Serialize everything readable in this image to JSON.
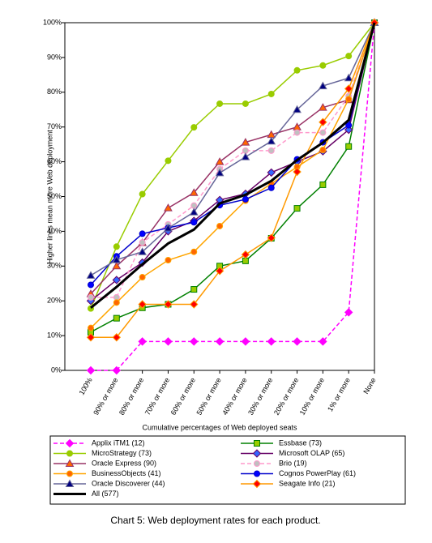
{
  "chart_data": {
    "type": "line",
    "title": "Chart 5:  Web deployment rates for each product.",
    "y_label": "Higher lines mean more Web deployment",
    "x_label": "Cumulative percentages of Web deployed seats",
    "categories": [
      "100%",
      "90% or more",
      "80% or more",
      "70% or more",
      "60% or more",
      "50% or more",
      "40% or more",
      "30% or more",
      "20% or more",
      "10% or more",
      "1% or more",
      "None"
    ],
    "ylim": [
      0,
      100
    ],
    "yticks": [
      {
        "value": 0,
        "label": "0%"
      },
      {
        "value": 10,
        "label": "10%"
      },
      {
        "value": 20,
        "label": "20%"
      },
      {
        "value": 30,
        "label": "30%"
      },
      {
        "value": 40,
        "label": "40%"
      },
      {
        "value": 50,
        "label": "50%"
      },
      {
        "value": 60,
        "label": "60%"
      },
      {
        "value": 70,
        "label": "70%"
      },
      {
        "value": 80,
        "label": "80%"
      },
      {
        "value": 90,
        "label": "90%"
      },
      {
        "value": 100,
        "label": "100%"
      }
    ],
    "grid": false,
    "series": [
      {
        "name": "Applix iTM1 (12)",
        "color": "#ff00ff",
        "marker": "diamond",
        "marker_fill": "#ff00ff",
        "dash": true,
        "values": [
          0,
          0,
          8.3,
          8.3,
          8.3,
          8.3,
          8.3,
          8.3,
          8.3,
          8.3,
          16.7,
          100
        ]
      },
      {
        "name": "Essbase (73)",
        "color": "#008000",
        "marker": "square",
        "marker_fill": "#99cc00",
        "dash": false,
        "values": [
          11,
          15,
          18,
          19,
          23.3,
          30,
          31.5,
          38,
          46.6,
          53.4,
          64.4,
          100
        ]
      },
      {
        "name": "MicroStrategy (73)",
        "color": "#99cc00",
        "marker": "circle",
        "marker_fill": "#99cc00",
        "dash": false,
        "values": [
          17.8,
          35.6,
          50.7,
          60.3,
          69.9,
          76.7,
          76.7,
          79.5,
          86.3,
          87.7,
          90.4,
          100
        ]
      },
      {
        "name": "Microsoft OLAP (65)",
        "color": "#660066",
        "marker": "diamond",
        "marker_fill": "#3366ff",
        "dash": false,
        "values": [
          20,
          26,
          31,
          40,
          43,
          49,
          50.8,
          56.9,
          60,
          63,
          69.2,
          100
        ]
      },
      {
        "name": "Oracle Express (90)",
        "color": "#993366",
        "marker": "triangle",
        "marker_fill": "#ff6600",
        "dash": false,
        "values": [
          22,
          30,
          36.7,
          46.7,
          51.1,
          60,
          65.6,
          67.8,
          70,
          75.6,
          77.8,
          100
        ]
      },
      {
        "name": "Brio (19)",
        "color": "#ff99cc",
        "marker": "circle",
        "marker_fill": "#c0c0c0",
        "dash": true,
        "values": [
          21,
          21,
          36.8,
          42,
          47.4,
          57.9,
          63.2,
          63.2,
          68.4,
          68.4,
          78.9,
          100
        ]
      },
      {
        "name": "BusinessObjects (41)",
        "color": "#ffa500",
        "marker": "circle",
        "marker_fill": "#ff6600",
        "dash": false,
        "values": [
          12.2,
          19.5,
          26.8,
          31.7,
          34.1,
          41.5,
          48.8,
          53.7,
          58.5,
          63.4,
          78,
          100
        ]
      },
      {
        "name": "Cognos PowerPlay (61)",
        "color": "#0000cc",
        "marker": "circle",
        "marker_fill": "#0000ff",
        "dash": false,
        "values": [
          24.6,
          32.8,
          39.3,
          41,
          42.6,
          47.5,
          49.2,
          52.5,
          60.7,
          65.6,
          70.5,
          100
        ]
      },
      {
        "name": "Oracle Discoverer (44)",
        "color": "#666699",
        "marker": "triangle",
        "marker_fill": "#000080",
        "dash": false,
        "values": [
          27.3,
          31.8,
          34.1,
          40.9,
          45.5,
          56.8,
          61.4,
          65.9,
          75,
          81.8,
          84.1,
          100
        ]
      },
      {
        "name": "Seagate Info (21)",
        "color": "#ff9900",
        "marker": "diamond",
        "marker_fill": "#ff0000",
        "dash": false,
        "values": [
          9.5,
          9.5,
          19,
          19,
          19,
          28.6,
          33.3,
          38.1,
          57.1,
          71.4,
          81,
          100
        ]
      },
      {
        "name": "All (577)",
        "color": "#000000",
        "marker": "none",
        "marker_fill": "#000000",
        "dash": false,
        "values": [
          18,
          24,
          30.5,
          36.5,
          40.5,
          48,
          50.5,
          54.5,
          60.5,
          65.5,
          72,
          100
        ]
      }
    ]
  }
}
